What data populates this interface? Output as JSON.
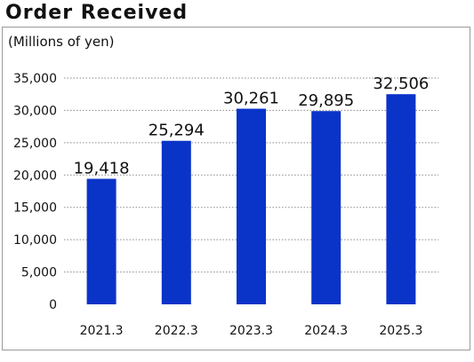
{
  "chart_data": {
    "type": "bar",
    "title": "Order Received",
    "ylabel": "(Millions of yen)",
    "xlabel": "",
    "categories": [
      "2021.3",
      "2022.3",
      "2023.3",
      "2024.3",
      "2025.3"
    ],
    "values": [
      19418,
      25294,
      30261,
      29895,
      32506
    ],
    "data_labels": [
      "19,418",
      "25,294",
      "30,261",
      "29,895",
      "32,506"
    ],
    "ylim": [
      0,
      35000
    ],
    "yticks": [
      0,
      5000,
      10000,
      15000,
      20000,
      25000,
      30000,
      35000
    ],
    "ytick_labels": [
      "0",
      "5,000",
      "10,000",
      "15,000",
      "20,000",
      "25,000",
      "30,000",
      "35,000"
    ],
    "grid": true,
    "bar_color": "#0a33c8",
    "grid_color": "#8a8a8a"
  }
}
